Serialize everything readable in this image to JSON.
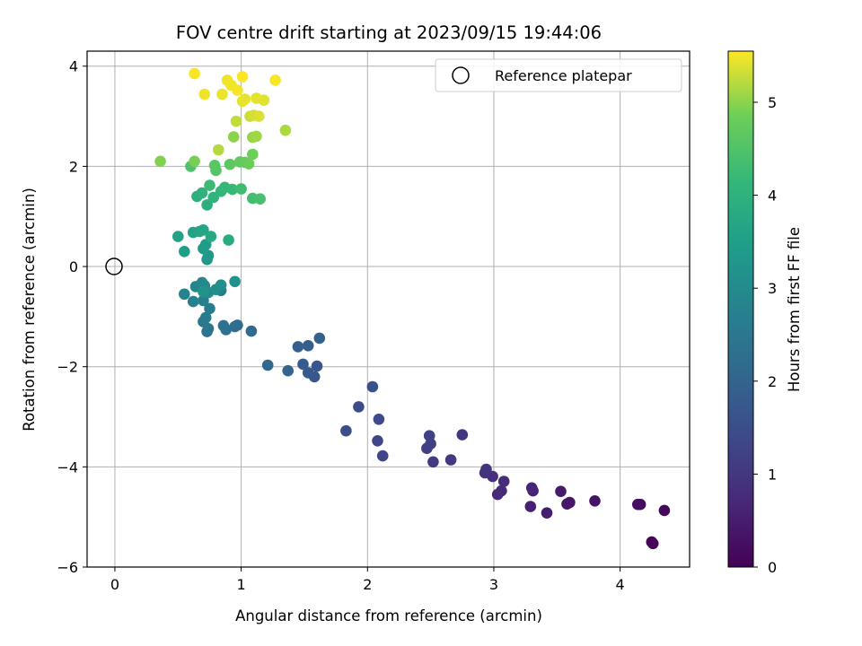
{
  "chart_data": {
    "type": "scatter",
    "title": "FOV centre drift starting at 2023/09/15 19:44:06",
    "xlabel": "Angular distance from reference (arcmin)",
    "ylabel": "Rotation from reference (arcmin)",
    "xlim": [
      -0.22,
      4.55
    ],
    "ylim": [
      -6.0,
      4.3
    ],
    "xticks": [
      0,
      1,
      2,
      3,
      4
    ],
    "yticks": [
      -6,
      -4,
      -2,
      0,
      2,
      4
    ],
    "xtick_labels": [
      "0",
      "1",
      "2",
      "3",
      "4"
    ],
    "ytick_labels": [
      "−6",
      "−4",
      "−2",
      "0",
      "2",
      "4"
    ],
    "grid": true,
    "legend": {
      "placement": "top-right",
      "entries": [
        "Reference platepar"
      ]
    },
    "reference_point": {
      "name": "Reference platepar",
      "x": 0,
      "y": 0
    },
    "colorbar": {
      "label": "Hours from first FF file",
      "colormap": "viridis",
      "range": [
        0,
        5.55
      ],
      "ticks": [
        0,
        1,
        2,
        3,
        4,
        5
      ],
      "tick_labels": [
        "0",
        "1",
        "2",
        "3",
        "4",
        "5"
      ]
    },
    "points": [
      [
        4.26,
        -5.53,
        0.05
      ],
      [
        4.25,
        -5.5,
        0.1
      ],
      [
        4.35,
        -4.87,
        0.15
      ],
      [
        4.16,
        -4.75,
        0.2
      ],
      [
        4.14,
        -4.75,
        0.25
      ],
      [
        3.8,
        -4.68,
        0.3
      ],
      [
        3.6,
        -4.71,
        0.35
      ],
      [
        3.58,
        -4.74,
        0.4
      ],
      [
        3.53,
        -4.49,
        0.45
      ],
      [
        3.42,
        -4.92,
        0.5
      ],
      [
        3.29,
        -4.79,
        0.55
      ],
      [
        3.31,
        -4.48,
        0.6
      ],
      [
        3.3,
        -4.42,
        0.65
      ],
      [
        3.03,
        -4.55,
        0.7
      ],
      [
        3.06,
        -4.48,
        0.75
      ],
      [
        3.08,
        -4.29,
        0.8
      ],
      [
        2.99,
        -4.19,
        0.85
      ],
      [
        2.93,
        -4.12,
        0.9
      ],
      [
        2.94,
        -4.05,
        0.95
      ],
      [
        2.75,
        -3.36,
        1.0
      ],
      [
        2.66,
        -3.86,
        1.05
      ],
      [
        2.52,
        -3.9,
        1.1
      ],
      [
        2.47,
        -3.63,
        1.15
      ],
      [
        2.5,
        -3.54,
        1.2
      ],
      [
        2.49,
        -3.38,
        1.25
      ],
      [
        2.12,
        -3.78,
        1.3
      ],
      [
        2.08,
        -3.48,
        1.35
      ],
      [
        2.09,
        -3.05,
        1.4
      ],
      [
        1.93,
        -2.8,
        1.45
      ],
      [
        1.83,
        -3.28,
        1.5
      ],
      [
        2.04,
        -2.4,
        1.55
      ],
      [
        1.6,
        -1.99,
        1.65
      ],
      [
        1.58,
        -2.2,
        1.7
      ],
      [
        1.53,
        -2.12,
        1.75
      ],
      [
        1.49,
        -1.95,
        1.8
      ],
      [
        1.53,
        -1.58,
        1.85
      ],
      [
        1.45,
        -1.6,
        1.9
      ],
      [
        1.62,
        -1.43,
        1.95
      ],
      [
        1.37,
        -2.08,
        2.0
      ],
      [
        1.21,
        -1.97,
        2.05
      ],
      [
        1.08,
        -1.29,
        2.15
      ],
      [
        0.97,
        -1.17,
        2.2
      ],
      [
        0.95,
        -1.2,
        2.25
      ],
      [
        0.88,
        -1.26,
        2.3
      ],
      [
        0.86,
        -1.18,
        2.35
      ],
      [
        0.73,
        -1.3,
        2.4
      ],
      [
        0.74,
        -1.24,
        2.45
      ],
      [
        0.7,
        -1.1,
        2.5
      ],
      [
        0.72,
        -1.02,
        2.55
      ],
      [
        0.75,
        -0.84,
        2.6
      ],
      [
        0.84,
        -0.48,
        2.65
      ],
      [
        0.7,
        -0.68,
        2.7
      ],
      [
        0.62,
        -0.7,
        2.75
      ],
      [
        0.55,
        -0.55,
        2.8
      ],
      [
        0.64,
        -0.4,
        2.85
      ],
      [
        0.69,
        -0.32,
        2.9
      ],
      [
        0.71,
        -0.38,
        2.95
      ],
      [
        0.74,
        -0.52,
        3.0
      ],
      [
        0.8,
        -0.46,
        3.05
      ],
      [
        0.84,
        -0.37,
        3.1
      ],
      [
        0.95,
        -0.3,
        3.15
      ],
      [
        0.7,
        -0.5,
        3.2
      ],
      [
        0.73,
        0.14,
        3.3
      ],
      [
        0.74,
        0.22,
        3.35
      ],
      [
        0.7,
        0.36,
        3.4
      ],
      [
        0.72,
        0.44,
        3.45
      ],
      [
        0.55,
        0.3,
        3.5
      ],
      [
        0.5,
        0.6,
        3.55
      ],
      [
        0.62,
        0.68,
        3.6
      ],
      [
        0.67,
        0.7,
        3.65
      ],
      [
        0.7,
        0.73,
        3.7
      ],
      [
        0.76,
        0.6,
        3.75
      ],
      [
        0.9,
        0.53,
        3.8
      ],
      [
        0.73,
        1.23,
        3.9
      ],
      [
        0.65,
        1.4,
        3.95
      ],
      [
        0.69,
        1.47,
        4.0
      ],
      [
        0.78,
        1.38,
        4.05
      ],
      [
        0.84,
        1.5,
        4.1
      ],
      [
        0.87,
        1.58,
        4.15
      ],
      [
        0.93,
        1.54,
        4.2
      ],
      [
        0.75,
        1.62,
        4.25
      ],
      [
        1.0,
        1.55,
        4.3
      ],
      [
        1.09,
        1.36,
        4.35
      ],
      [
        1.15,
        1.35,
        4.4
      ],
      [
        0.6,
        2.0,
        4.5
      ],
      [
        0.8,
        1.92,
        4.55
      ],
      [
        0.79,
        2.02,
        4.6
      ],
      [
        0.91,
        2.04,
        4.65
      ],
      [
        0.99,
        2.09,
        4.7
      ],
      [
        1.03,
        2.08,
        4.75
      ],
      [
        1.06,
        2.05,
        4.8
      ],
      [
        1.09,
        2.24,
        4.85
      ],
      [
        0.63,
        2.1,
        4.9
      ],
      [
        0.36,
        2.1,
        4.95
      ],
      [
        0.94,
        2.59,
        5.0
      ],
      [
        1.09,
        2.58,
        5.05
      ],
      [
        1.12,
        2.6,
        5.1
      ],
      [
        1.35,
        2.72,
        5.15
      ],
      [
        0.82,
        2.33,
        5.2
      ],
      [
        0.96,
        2.9,
        5.25
      ],
      [
        1.07,
        3.0,
        5.3
      ],
      [
        1.1,
        3.02,
        5.35
      ],
      [
        1.14,
        3.0,
        5.38
      ],
      [
        1.18,
        3.32,
        5.4
      ],
      [
        1.12,
        3.36,
        5.42
      ],
      [
        1.01,
        3.3,
        5.44
      ],
      [
        1.03,
        3.34,
        5.45
      ],
      [
        0.85,
        3.44,
        5.46
      ],
      [
        0.71,
        3.44,
        5.47
      ],
      [
        0.89,
        3.72,
        5.48
      ],
      [
        0.92,
        3.62,
        5.49
      ],
      [
        0.97,
        3.52,
        5.5
      ],
      [
        1.27,
        3.72,
        5.51
      ],
      [
        0.63,
        3.85,
        5.52
      ],
      [
        1.01,
        3.79,
        5.53
      ]
    ]
  }
}
